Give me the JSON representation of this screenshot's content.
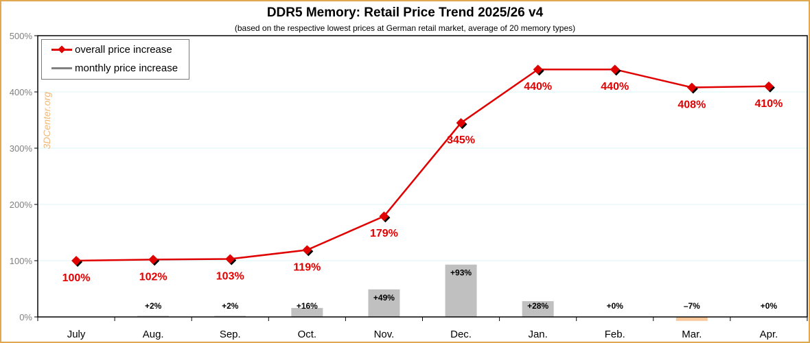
{
  "chart_data": {
    "type": "line+bar",
    "title": "DDR5 Memory: Retail Price Trend 2025/26 v4",
    "subtitle": "(based on the respective lowest prices at German retail market, average of 20 memory types)",
    "categories": [
      "July",
      "Aug.",
      "Sep.",
      "Oct.",
      "Nov.",
      "Dec.",
      "Jan.",
      "Feb.",
      "Mar.",
      "Apr."
    ],
    "ylim": [
      0,
      500
    ],
    "yticks": [
      "0%",
      "100%",
      "200%",
      "300%",
      "400%",
      "500%"
    ],
    "grid": true,
    "legend_position": "top-left",
    "watermark": "3DCenter.org",
    "series": [
      {
        "name": "overall price increase",
        "type": "line",
        "color": "#e00000",
        "values": [
          100,
          102,
          103,
          119,
          179,
          345,
          440,
          440,
          408,
          410
        ],
        "labels": [
          "100%",
          "102%",
          "103%",
          "119%",
          "179%",
          "345%",
          "440%",
          "440%",
          "408%",
          "410%"
        ]
      },
      {
        "name": "monthly price increase",
        "type": "bar",
        "color": "#c0c0c0",
        "negative_color": "#f8c89a",
        "values": [
          null,
          2,
          2,
          16,
          49,
          93,
          28,
          0,
          -7,
          0
        ],
        "labels": [
          "",
          "+2%",
          "+2%",
          "+16%",
          "+49%",
          "+93%",
          "+28%",
          "+0%",
          "–7%",
          "+0%"
        ]
      }
    ]
  }
}
